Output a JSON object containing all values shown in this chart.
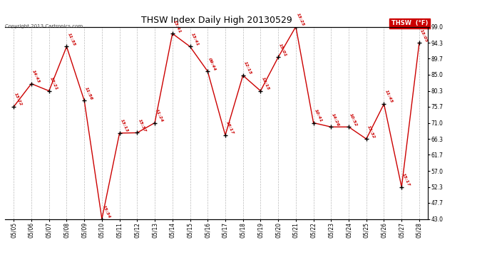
{
  "title": "THSW Index Daily High 20130529",
  "copyright": "Copyright 2013 Cartronics.com",
  "legend_label": "THSW  (°F)",
  "dates": [
    "05/05",
    "05/06",
    "05/07",
    "05/08",
    "05/09",
    "05/10",
    "05/11",
    "05/12",
    "05/13",
    "05/14",
    "05/15",
    "05/16",
    "05/17",
    "05/18",
    "05/19",
    "05/20",
    "05/21",
    "05/22",
    "05/23",
    "05/24",
    "05/25",
    "05/26",
    "05/27",
    "05/28"
  ],
  "values": [
    75.7,
    82.4,
    80.3,
    93.2,
    77.5,
    43.0,
    68.0,
    68.1,
    71.0,
    97.0,
    93.2,
    86.0,
    67.4,
    84.8,
    80.3,
    90.1,
    99.0,
    71.0,
    69.8,
    69.8,
    66.3,
    76.5,
    52.3,
    94.3
  ],
  "labels": [
    "13:22",
    "14:43",
    "12:21",
    "11:35",
    "11:56",
    "15:34",
    "13:13",
    "15:37",
    "11:24",
    "13:41",
    "13:41",
    "09:44",
    "16:17",
    "12:15",
    "12:15",
    "15:01",
    "13:25",
    "10:41",
    "14:26",
    "10:52",
    "13:32",
    "11:45",
    "15:17",
    "13:05"
  ],
  "yticks": [
    43.0,
    47.7,
    52.3,
    57.0,
    61.7,
    66.3,
    71.0,
    75.7,
    80.3,
    85.0,
    89.7,
    94.3,
    99.0
  ],
  "ylim": [
    43.0,
    99.0
  ],
  "line_color": "#cc0000",
  "marker_color": "#000000",
  "label_color": "#cc0000",
  "background_color": "#ffffff",
  "grid_color": "#bbbbbb",
  "title_fontsize": 9,
  "legend_bg": "#cc0000",
  "legend_fg": "#ffffff"
}
